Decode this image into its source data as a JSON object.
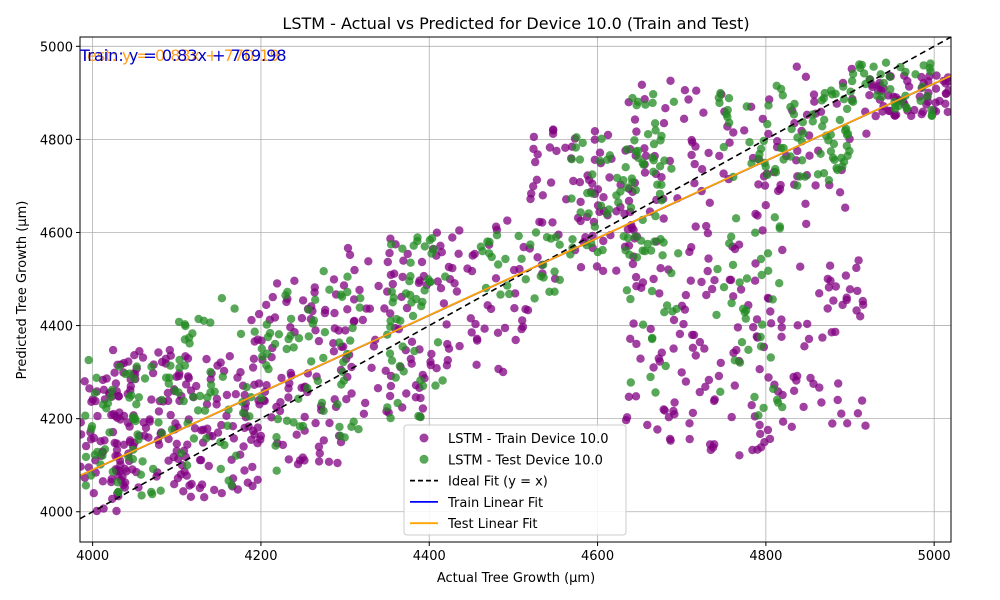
{
  "chart_data": {
    "type": "scatter",
    "title": "LSTM - Actual vs Predicted for Device 10.0 (Train and Test)",
    "xlabel": "Actual Tree Growth (µm)",
    "ylabel": "Predicted Tree Growth (µm)",
    "xlim": [
      3985,
      5020
    ],
    "ylim": [
      3935,
      5020
    ],
    "xticks": [
      4000,
      4200,
      4400,
      4600,
      4800,
      5000
    ],
    "yticks": [
      4000,
      4200,
      4400,
      4600,
      4800,
      5000
    ],
    "grid": true,
    "legend_position": "lower-center",
    "annotations": [
      {
        "text": "Train: y = 0.83x + 769.98",
        "color": "#0000cc"
      },
      {
        "text": "Test: y = 0.83x + 770.19",
        "color": "#ff9f1c"
      }
    ],
    "series": [
      {
        "name": "LSTM - Train Device 10.0",
        "kind": "points",
        "color": "#800080",
        "clusters": [
          {
            "x": [
              3985,
              4050
            ],
            "y": [
              4000,
              4300
            ],
            "n": 70
          },
          {
            "x": [
              4020,
              4120
            ],
            "y": [
              4050,
              4350
            ],
            "n": 80
          },
          {
            "x": [
              4100,
              4200
            ],
            "y": [
              4030,
              4340
            ],
            "n": 80
          },
          {
            "x": [
              4180,
              4300
            ],
            "y": [
              4100,
              4500
            ],
            "n": 90
          },
          {
            "x": [
              4300,
              4400
            ],
            "y": [
              4200,
              4600
            ],
            "n": 70
          },
          {
            "x": [
              4400,
              4520
            ],
            "y": [
              4300,
              4640
            ],
            "n": 60
          },
          {
            "x": [
              4520,
              4650
            ],
            "y": [
              4500,
              4830
            ],
            "n": 80
          },
          {
            "x": [
              4630,
              4720
            ],
            "y": [
              4150,
              4950
            ],
            "n": 90
          },
          {
            "x": [
              4720,
              4820
            ],
            "y": [
              4120,
              4900
            ],
            "n": 100
          },
          {
            "x": [
              4820,
              4920
            ],
            "y": [
              4180,
              4960
            ],
            "n": 80
          },
          {
            "x": [
              4920,
              5020
            ],
            "y": [
              4850,
              4940
            ],
            "n": 60
          }
        ]
      },
      {
        "name": "LSTM - Test Device 10.0",
        "kind": "points",
        "color": "#228b22",
        "clusters": [
          {
            "x": [
              3990,
              4100
            ],
            "y": [
              4030,
              4330
            ],
            "n": 60
          },
          {
            "x": [
              4100,
              4220
            ],
            "y": [
              4050,
              4460
            ],
            "n": 60
          },
          {
            "x": [
              4220,
              4320
            ],
            "y": [
              4150,
              4520
            ],
            "n": 50
          },
          {
            "x": [
              4350,
              4420
            ],
            "y": [
              4200,
              4590
            ],
            "n": 50
          },
          {
            "x": [
              4460,
              4560
            ],
            "y": [
              4450,
              4600
            ],
            "n": 30
          },
          {
            "x": [
              4560,
              4680
            ],
            "y": [
              4550,
              4810
            ],
            "n": 60
          },
          {
            "x": [
              4630,
              4700
            ],
            "y": [
              4200,
              4900
            ],
            "n": 40
          },
          {
            "x": [
              4740,
              4900
            ],
            "y": [
              4700,
              4920
            ],
            "n": 80
          },
          {
            "x": [
              4740,
              4820
            ],
            "y": [
              4200,
              4650
            ],
            "n": 40
          },
          {
            "x": [
              4900,
              5000
            ],
            "y": [
              4850,
              4970
            ],
            "n": 40
          }
        ]
      },
      {
        "name": "Ideal Fit (y = x)",
        "kind": "line",
        "color": "#000000",
        "dash": true,
        "slope": 1.0,
        "intercept": 0
      },
      {
        "name": "Train Linear Fit",
        "kind": "line",
        "color": "#0000ff",
        "slope": 0.83,
        "intercept": 769.98
      },
      {
        "name": "Test Linear Fit",
        "kind": "line",
        "color": "#ffa500",
        "slope": 0.83,
        "intercept": 770.19
      }
    ]
  }
}
